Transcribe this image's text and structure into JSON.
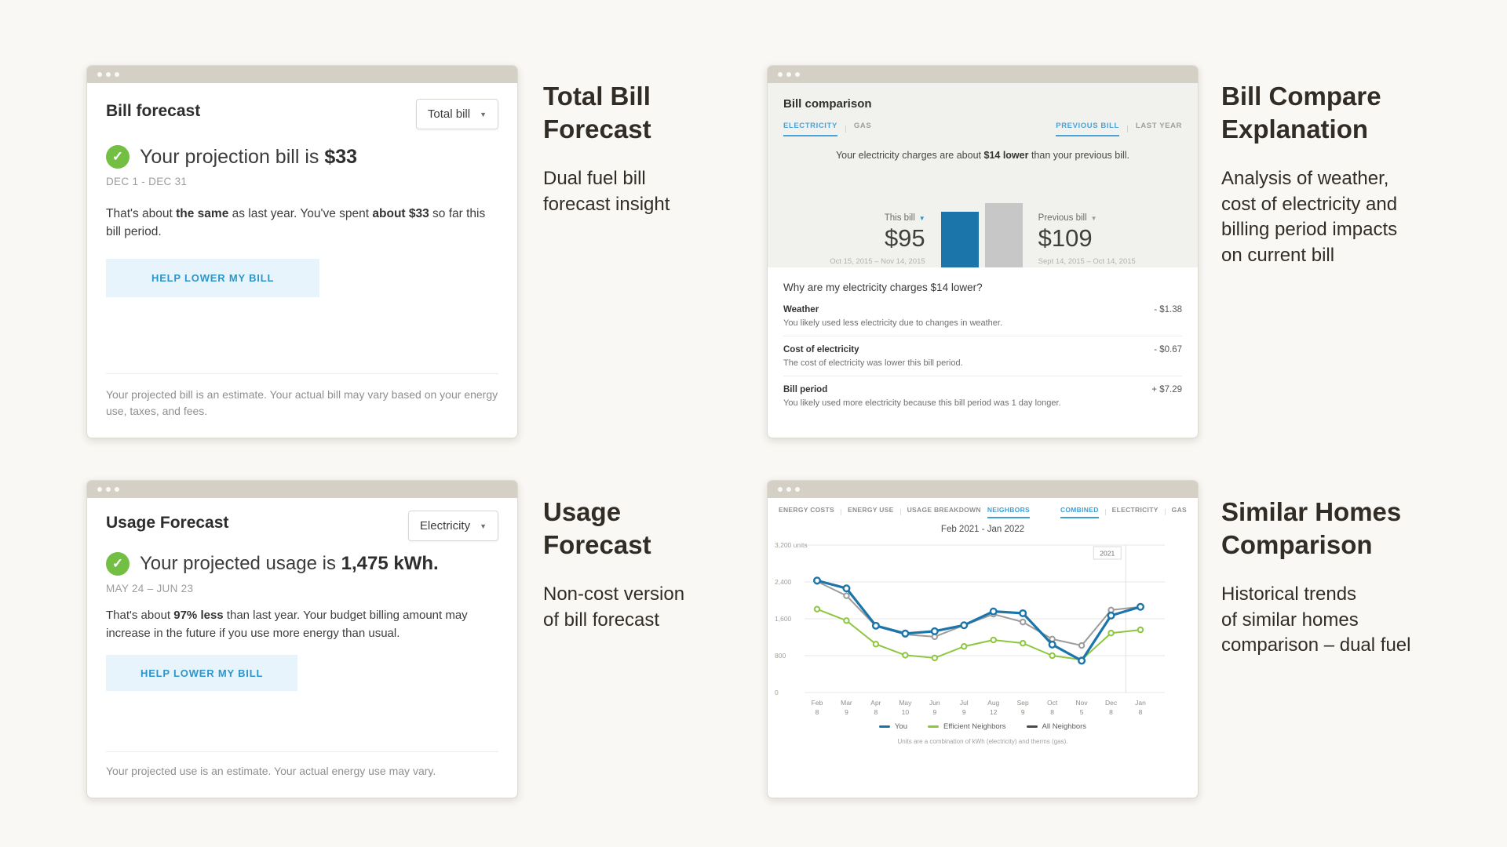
{
  "colors": {
    "accent_blue": "#2e95c9",
    "tab_blue": "#4aa3d8",
    "bar_blue": "#1b74aa",
    "success_green": "#72bf44",
    "chart_green": "#8dc63f",
    "neutral_bar_gray": "#c7c7c7"
  },
  "annotations": {
    "bill_forecast": {
      "title_lines": [
        "Total Bill",
        "Forecast"
      ],
      "desc_lines": [
        "Dual fuel bill",
        "forecast insight"
      ]
    },
    "bill_compare": {
      "title_lines": [
        "Bill Compare",
        "Explanation"
      ],
      "desc_lines": [
        "Analysis of weather,",
        "cost of electricity and",
        "billing period impacts",
        "on current bill"
      ]
    },
    "usage_forecast": {
      "title_lines": [
        "Usage",
        "Forecast"
      ],
      "desc_lines": [
        "Non-cost version",
        "of bill forecast"
      ]
    },
    "neighbors": {
      "title_lines": [
        "Similar Homes",
        "Comparison"
      ],
      "desc_lines": [
        "Historical trends",
        "of similar homes",
        "comparison – dual fuel"
      ]
    }
  },
  "bill_forecast": {
    "title": "Bill forecast",
    "dropdown_value": "Total bill",
    "headline_prefix": "Your projection bill is ",
    "headline_value": "$33",
    "date_range": "DEC 1 - DEC 31",
    "body": {
      "t1": "That's about ",
      "b1": "the same",
      "t2": " as last year. You've spent ",
      "b2": "about $33",
      "t3": " so far this bill period."
    },
    "cta": "HELP LOWER MY BILL",
    "disclaimer": "Your projected bill is an estimate. Your actual bill may vary based on your energy use, taxes, and fees."
  },
  "usage_forecast": {
    "title": "Usage Forecast",
    "dropdown_value": "Electricity",
    "headline_prefix": "Your projected usage is ",
    "headline_value": "1,475 kWh.",
    "date_range": "MAY 24 – JUN 23",
    "body": {
      "t1": "That's about ",
      "b1": "97% less",
      "t2": " than last year. Your budget billing amount may increase in the future if you use more energy than usual."
    },
    "cta": "HELP LOWER MY BILL",
    "disclaimer": "Your projected use is an estimate. Your actual energy use may vary."
  },
  "comparison": {
    "title": "Bill comparison",
    "fuel_tabs": [
      "ELECTRICITY",
      "GAS"
    ],
    "period_tabs": [
      "PREVIOUS BILL",
      "LAST YEAR"
    ],
    "summary": {
      "t1": "Your electricity charges are about ",
      "b1": "$14 lower",
      "t2": " than your previous bill."
    },
    "question": "Why are my electricity charges $14 lower?",
    "rows": [
      {
        "label": "Weather",
        "amount": "- $1.38",
        "desc": "You likely used less electricity due to changes in weather."
      },
      {
        "label": "Cost of electricity",
        "amount": "- $0.67",
        "desc": "The cost of electricity was lower this bill period."
      },
      {
        "label": "Bill period",
        "amount": "+ $7.29",
        "desc": "You likely used more electricity because this bill period was 1 day longer."
      }
    ]
  },
  "neighbors": {
    "tabs_left": [
      "ENERGY COSTS",
      "ENERGY USE",
      "USAGE BREAKDOWN",
      "NEIGHBORS"
    ],
    "tabs_right": [
      "COMBINED",
      "ELECTRICITY",
      "GAS"
    ],
    "active_left": "NEIGHBORS",
    "active_right": "COMBINED"
  },
  "chart_data": [
    {
      "type": "bar",
      "title": "Bill comparison — this bill vs previous bill",
      "categories": [
        "This bill",
        "Previous bill"
      ],
      "values": [
        95,
        109
      ],
      "value_labels": [
        "$95",
        "$109"
      ],
      "date_ranges": [
        "Oct 15, 2015 – Nov 14, 2015",
        "Sept 14, 2015 – Oct 14, 2015"
      ],
      "colors": [
        "#1b74aa",
        "#c7c7c7"
      ]
    },
    {
      "type": "line",
      "title": "Feb 2021 - Jan 2022",
      "categories": [
        "Feb",
        "Mar",
        "Apr",
        "May",
        "Jun",
        "Jul",
        "Aug",
        "Sep",
        "Oct",
        "Nov",
        "Dec",
        "Jan"
      ],
      "x_sublabels": [
        "8",
        "9",
        "8",
        "10",
        "9",
        "9",
        "12",
        "9",
        "8",
        "5",
        "8",
        "8"
      ],
      "series": [
        {
          "name": "You",
          "color": "#1b74aa",
          "values": [
            2430,
            2260,
            1450,
            1280,
            1330,
            1460,
            1760,
            1720,
            1040,
            690,
            1670,
            1860
          ]
        },
        {
          "name": "Efficient Neighbors",
          "color": "#8dc63f",
          "values": [
            1810,
            1560,
            1050,
            810,
            750,
            1000,
            1140,
            1070,
            800,
            710,
            1290,
            1360
          ]
        },
        {
          "name": "All Neighbors",
          "color": "#9b9b9b",
          "legend_color": "#4a4a4a",
          "values": [
            2410,
            2100,
            1440,
            1260,
            1210,
            1460,
            1700,
            1530,
            1160,
            1020,
            1790,
            1860
          ]
        }
      ],
      "ylim": [
        0,
        3200
      ],
      "yticks": [
        0,
        800,
        1600,
        2400,
        3200
      ],
      "ytick_labels": [
        "0",
        "800",
        "1,600",
        "2,400",
        "3,200 units"
      ],
      "year_label": "2021",
      "grid": true,
      "legend_position": "bottom",
      "footnote": "Units are a combination of kWh (electricity) and therms (gas)."
    }
  ]
}
